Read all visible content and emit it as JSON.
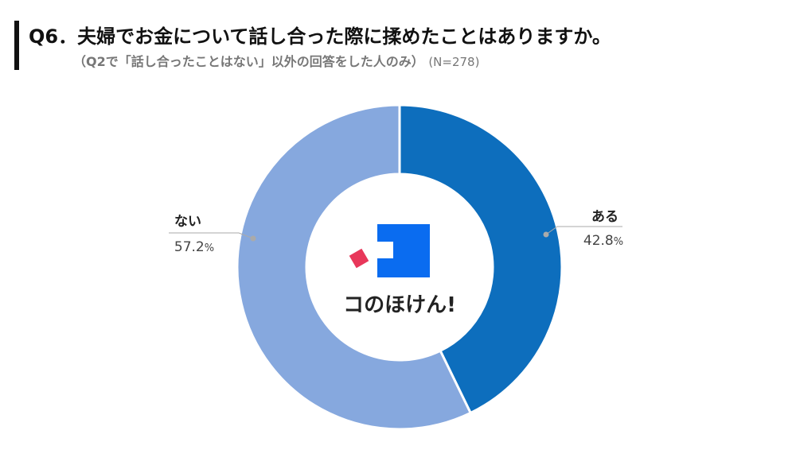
{
  "header": {
    "title": "Q6．夫婦でお金について話し合った際に揉めたことはありますか。",
    "subtitle": "（Q2で「話し合ったことはない」以外の回答をした人のみ）",
    "sample": "(N=278)"
  },
  "logo": {
    "text": "コのほけん!",
    "blue": "#0a6cf0",
    "red": "#e8375a"
  },
  "chart_data": {
    "type": "pie",
    "donut": true,
    "start": "12 o'clock, clockwise",
    "slices": [
      {
        "label": "ある",
        "value": 42.8,
        "color": "#0d6ebd"
      },
      {
        "label": "ない",
        "value": 57.2,
        "color": "#86a8de"
      }
    ],
    "unit": "%"
  }
}
